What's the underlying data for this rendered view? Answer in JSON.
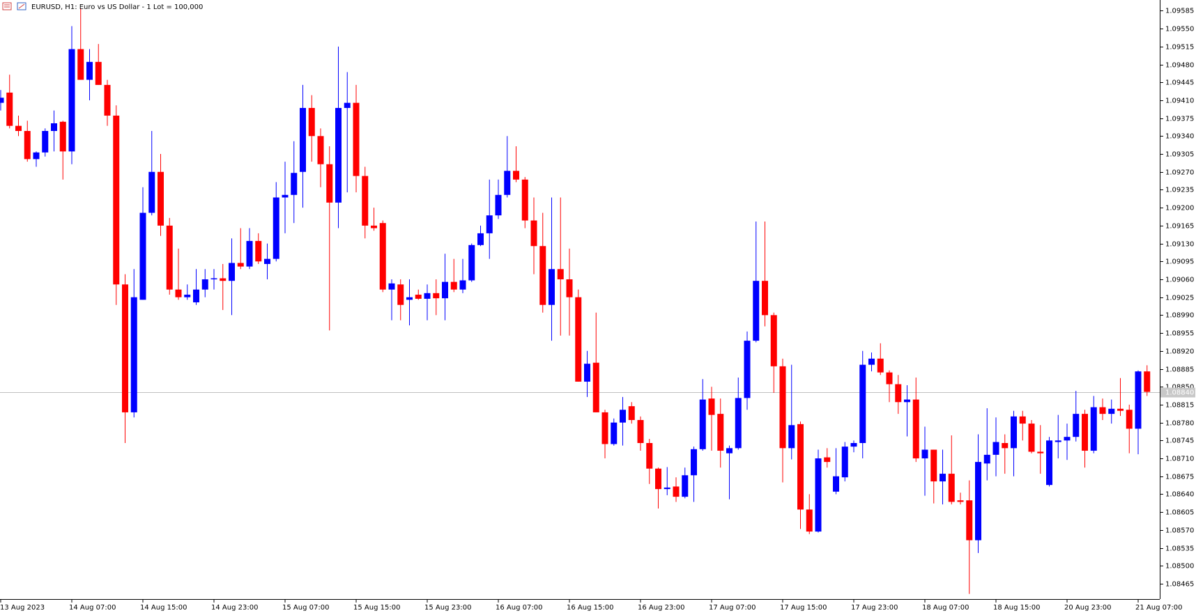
{
  "chart_data": {
    "type": "candlestick",
    "title": "EURUSD, H1:  Euro vs US Dollar - 1 Lot = 100,000",
    "categories": [
      "13 Aug 2023",
      null,
      null,
      null,
      null,
      null,
      null,
      null,
      "14 Aug 07:00",
      null,
      null,
      null,
      null,
      null,
      null,
      null,
      "14 Aug 15:00",
      null,
      null,
      null,
      null,
      null,
      null,
      null,
      "14 Aug 23:00",
      null,
      null,
      null,
      null,
      null,
      null,
      null,
      "15 Aug 07:00",
      null,
      null,
      null,
      null,
      null,
      null,
      null,
      "15 Aug 15:00",
      null,
      null,
      null,
      null,
      null,
      null,
      null,
      "15 Aug 23:00",
      null,
      null,
      null,
      null,
      null,
      null,
      null,
      "16 Aug 07:00",
      null,
      null,
      null,
      null,
      null,
      null,
      null,
      "16 Aug 15:00",
      null,
      null,
      null,
      null,
      null,
      null,
      null,
      "16 Aug 23:00",
      null,
      null,
      null,
      null,
      null,
      null,
      null,
      "17 Aug 07:00",
      null,
      null,
      null,
      null,
      null,
      null,
      null,
      "17 Aug 15:00",
      null,
      null,
      null,
      null,
      null,
      null,
      null,
      "17 Aug 23:00",
      null,
      null,
      null,
      null,
      null,
      null,
      null,
      "18 Aug 07:00",
      null,
      null,
      null,
      null,
      null,
      null,
      null,
      "18 Aug 15:00",
      null,
      null,
      null,
      null,
      null,
      null,
      null,
      "20 Aug 23:00",
      null,
      null,
      null,
      null,
      null,
      null,
      null,
      "21 Aug 07:00",
      null
    ],
    "open": [
      1.09405,
      1.09425,
      1.0936,
      1.0935,
      1.09295,
      1.09308,
      1.0935,
      1.09368,
      1.0931,
      1.0951,
      1.0945,
      1.09485,
      1.0944,
      1.0938,
      1.0905,
      1.088,
      1.0902,
      1.0919,
      1.0927,
      1.09165,
      1.0904,
      1.09025,
      1.09015,
      1.0904,
      1.0906,
      1.09062,
      1.09057,
      1.09092,
      1.09085,
      1.09135,
      1.0909,
      1.091,
      1.0922,
      1.09225,
      1.0927,
      1.09395,
      1.0934,
      1.09285,
      1.0921,
      1.09395,
      1.09405,
      1.09262,
      1.09165,
      1.0917,
      1.0904,
      1.0905,
      1.0902,
      1.0903,
      1.09022,
      1.09033,
      1.09023,
      1.09055,
      1.0904,
      1.09058,
      1.09127,
      1.0915,
      1.09185,
      1.09225,
      1.09272,
      1.09255,
      1.09175,
      1.09125,
      1.0901,
      1.0908,
      1.0906,
      1.09025,
      1.0886,
      1.08897,
      1.088,
      1.08738,
      1.0878,
      1.08812,
      1.08785,
      1.0874,
      1.0869,
      1.0865,
      1.08655,
      1.08635,
      1.08677,
      1.08728,
      1.08827,
      1.08797,
      1.0872,
      1.0873,
      1.08828,
      1.0894,
      1.09057,
      1.0899,
      1.0889,
      1.0873,
      1.08777,
      1.0861,
      1.08567,
      1.08712,
      1.08645,
      1.08673,
      1.08733,
      1.0874,
      1.08893,
      1.08905,
      1.08878,
      1.08855,
      1.0882,
      1.08825,
      1.0871,
      1.08727,
      1.08665,
      1.0868,
      1.08628,
      1.08628,
      1.0855,
      1.087,
      1.08717,
      1.0874,
      1.0873,
      1.08792,
      1.08778,
      1.08723,
      1.08658,
      1.08742,
      1.08745,
      1.08752,
      1.08797,
      1.08725,
      1.0881,
      1.08797,
      1.08807,
      1.08805,
      1.08768,
      1.0888
    ],
    "high": [
      1.0943,
      1.0946,
      1.0938,
      1.0937,
      1.0931,
      1.09355,
      1.0939,
      1.0937,
      1.09555,
      1.0959,
      1.0951,
      1.0952,
      1.0945,
      1.094,
      1.0907,
      1.0908,
      1.0924,
      1.0935,
      1.09305,
      1.0918,
      1.0912,
      1.0905,
      1.0908,
      1.0908,
      1.0908,
      1.0909,
      1.0914,
      1.0916,
      1.0916,
      1.0915,
      1.0913,
      1.0925,
      1.0929,
      1.0933,
      1.0944,
      1.0942,
      1.09355,
      1.0932,
      1.09515,
      1.09465,
      1.0944,
      1.0928,
      1.092,
      1.09175,
      1.0906,
      1.0906,
      1.0906,
      1.0904,
      1.0905,
      1.0906,
      1.0911,
      1.091,
      1.091,
      1.0913,
      1.09165,
      1.09255,
      1.09255,
      1.0934,
      1.0932,
      1.0926,
      1.0922,
      1.0919,
      1.0922,
      1.0922,
      1.0912,
      1.0904,
      1.0892,
      1.08995,
      1.08805,
      1.08788,
      1.0883,
      1.0882,
      1.08792,
      1.08748,
      1.08692,
      1.08693,
      1.08673,
      1.08692,
      1.08733,
      1.08865,
      1.0885,
      1.08827,
      1.08735,
      1.08868,
      1.08958,
      1.09173,
      1.09173,
      1.08995,
      1.08905,
      1.08893,
      1.08782,
      1.0864,
      1.08727,
      1.0873,
      1.0873,
      1.08742,
      1.08745,
      1.0892,
      1.08917,
      1.08935,
      1.08882,
      1.08873,
      1.08853,
      1.08868,
      1.08772,
      1.08727,
      1.08727,
      1.08755,
      1.08643,
      1.08667,
      1.08757,
      1.08808,
      1.0879,
      1.08757,
      1.08803,
      1.08803,
      1.08785,
      1.08775,
      1.08752,
      1.08795,
      1.08778,
      1.08842,
      1.08805,
      1.08832,
      1.08827,
      1.08825,
      1.08867,
      1.08815,
      1.08882,
      1.08892
    ],
    "low": [
      1.0939,
      1.09355,
      1.0934,
      1.0929,
      1.0928,
      1.093,
      1.0931,
      1.09255,
      1.09285,
      1.0945,
      1.0941,
      1.0944,
      1.0936,
      1.0901,
      1.0874,
      1.0879,
      1.0902,
      1.09185,
      1.09145,
      1.0903,
      1.0902,
      1.0902,
      1.0901,
      1.09025,
      1.0904,
      1.09,
      1.0899,
      1.0908,
      1.0908,
      1.0909,
      1.0906,
      1.09095,
      1.0915,
      1.0917,
      1.092,
      1.0929,
      1.0924,
      1.0896,
      1.0916,
      1.0923,
      1.0923,
      1.0914,
      1.09155,
      1.09035,
      1.0898,
      1.0898,
      1.0897,
      1.0902,
      1.0898,
      1.0899,
      1.0898,
      1.09035,
      1.09033,
      1.09055,
      1.09125,
      1.091,
      1.09178,
      1.0922,
      1.0925,
      1.0916,
      1.0907,
      1.08995,
      1.0894,
      1.0895,
      1.0895,
      1.0886,
      1.0883,
      1.088,
      1.0871,
      1.08735,
      1.08735,
      1.08778,
      1.08725,
      1.0866,
      1.08612,
      1.08638,
      1.08625,
      1.08632,
      1.08625,
      1.08725,
      1.08725,
      1.08692,
      1.0863,
      1.08727,
      1.08805,
      1.08937,
      1.08968,
      1.08838,
      1.08663,
      1.08708,
      1.08572,
      1.08562,
      1.08565,
      1.08692,
      1.0864,
      1.08665,
      1.08722,
      1.0871,
      1.0888,
      1.08873,
      1.0882,
      1.08797,
      1.08753,
      1.08703,
      1.08637,
      1.08622,
      1.0862,
      1.0862,
      1.0862,
      1.08445,
      1.08525,
      1.08667,
      1.08675,
      1.0868,
      1.08675,
      1.08745,
      1.0872,
      1.0868,
      1.08655,
      1.0871,
      1.08707,
      1.08743,
      1.08692,
      1.0872,
      1.08785,
      1.08778,
      1.08793,
      1.0872,
      1.08718,
      1.08832
    ],
    "close": [
      1.09415,
      1.0936,
      1.0935,
      1.09295,
      1.09308,
      1.0935,
      1.09365,
      1.0931,
      1.0951,
      1.0945,
      1.09485,
      1.0944,
      1.0938,
      1.0905,
      1.088,
      1.09025,
      1.0919,
      1.0927,
      1.09165,
      1.0904,
      1.09025,
      1.0903,
      1.0904,
      1.0906,
      1.09062,
      1.09057,
      1.09092,
      1.09085,
      1.09135,
      1.09095,
      1.091,
      1.0922,
      1.09225,
      1.09268,
      1.09395,
      1.0934,
      1.09285,
      1.0921,
      1.09395,
      1.09405,
      1.09262,
      1.09165,
      1.0916,
      1.0904,
      1.09052,
      1.0901,
      1.09025,
      1.09022,
      1.09033,
      1.09023,
      1.09055,
      1.0904,
      1.09058,
      1.09127,
      1.0915,
      1.09185,
      1.09225,
      1.09272,
      1.09255,
      1.09175,
      1.09125,
      1.0901,
      1.0908,
      1.0906,
      1.09025,
      1.0886,
      1.08895,
      1.088,
      1.08738,
      1.0878,
      1.08805,
      1.08785,
      1.0874,
      1.0869,
      1.0865,
      1.08653,
      1.08635,
      1.08677,
      1.08728,
      1.08825,
      1.08795,
      1.08725,
      1.0873,
      1.08828,
      1.0894,
      1.09057,
      1.0899,
      1.0889,
      1.0873,
      1.08775,
      1.0861,
      1.08567,
      1.0871,
      1.08703,
      1.08675,
      1.08733,
      1.0874,
      1.08893,
      1.08905,
      1.08878,
      1.08855,
      1.0882,
      1.08825,
      1.0871,
      1.08727,
      1.08665,
      1.0868,
      1.08625,
      1.08625,
      1.0855,
      1.08703,
      1.08717,
      1.08742,
      1.0873,
      1.08792,
      1.08778,
      1.08723,
      1.0872,
      1.08745,
      1.08745,
      1.08752,
      1.08797,
      1.08725,
      1.0881,
      1.08797,
      1.08807,
      1.08803,
      1.08768,
      1.0888,
      1.0884
    ],
    "up_color": "#0000ff",
    "down_color": "#ff0000",
    "ylim": [
      1.08435,
      1.09606
    ],
    "yticks": [
      1.09585,
      {
        "value": 1.0955,
        "label": "1.09550"
      },
      1.09515,
      {
        "value": 1.0948,
        "label": "1.09480"
      },
      1.09445,
      {
        "value": 1.0941,
        "label": "1.09410"
      },
      1.09375,
      {
        "value": 1.0934,
        "label": "1.09340"
      },
      1.09305,
      {
        "value": 1.0927,
        "label": "1.09270"
      },
      1.09235,
      {
        "value": 1.092,
        "label": "1.09200"
      },
      1.09165,
      {
        "value": 1.0913,
        "label": "1.09130"
      },
      1.09095,
      {
        "value": 1.0906,
        "label": "1.09060"
      },
      1.09025,
      {
        "value": 1.0899,
        "label": "1.08990"
      },
      1.08955,
      {
        "value": 1.0892,
        "label": "1.08920"
      },
      1.08885,
      {
        "value": 1.0885,
        "label": "1.08850"
      },
      1.08815,
      {
        "value": 1.0878,
        "label": "1.08780"
      },
      1.08745,
      {
        "value": 1.0871,
        "label": "1.08710"
      },
      1.08675,
      {
        "value": 1.0864,
        "label": "1.08640"
      },
      1.08605,
      {
        "value": 1.0857,
        "label": "1.08570"
      },
      1.08535,
      {
        "value": 1.085,
        "label": "1.08500"
      },
      1.08465
    ],
    "current_price": {
      "value": 1.0884,
      "label": "1.08840"
    },
    "grid": false
  }
}
